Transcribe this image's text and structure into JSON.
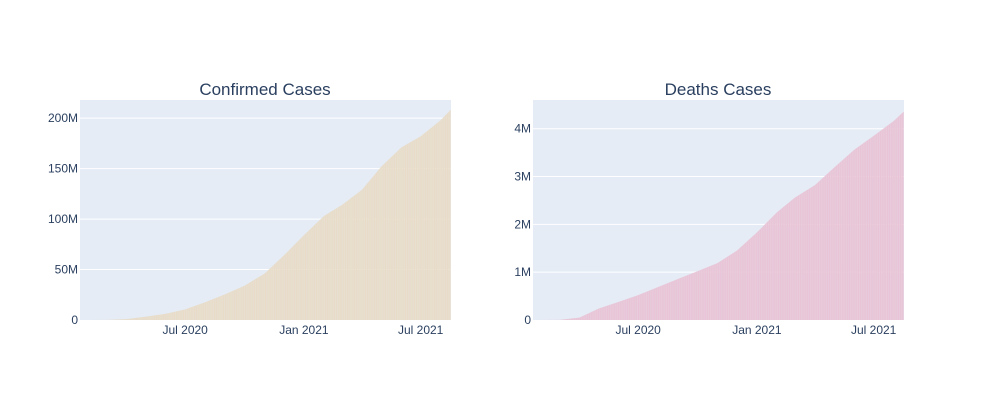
{
  "chart_data": [
    {
      "type": "bar",
      "title": "Confirmed Cases",
      "xlabel": "",
      "ylabel": "",
      "x_ticks": [
        "Jul 2020",
        "Jan 2021",
        "Jul 2021"
      ],
      "y_ticks": [
        "0",
        "50M",
        "100M",
        "150M",
        "200M"
      ],
      "ylim": [
        0,
        218000000
      ],
      "x_range": [
        "2020-01-20",
        "2021-08-17"
      ],
      "grid": true,
      "legend": "none",
      "color": "#e8dcc8",
      "series": [
        {
          "x": [
            "2020-01-22",
            "2020-03-01",
            "2020-04-01",
            "2020-05-01",
            "2020-06-01",
            "2020-07-01",
            "2020-08-01",
            "2020-09-01",
            "2020-10-01",
            "2020-11-01",
            "2020-12-01",
            "2021-01-01",
            "2021-02-01",
            "2021-03-01",
            "2021-04-01",
            "2021-05-01",
            "2021-06-01",
            "2021-07-01",
            "2021-08-01",
            "2021-08-16"
          ],
          "values": [
            0,
            90000,
            900000,
            3300000,
            6200000,
            10500000,
            17600000,
            25500000,
            34000000,
            46000000,
            64000000,
            84000000,
            103000000,
            114000000,
            129000000,
            152000000,
            171000000,
            182000000,
            198000000,
            208000000
          ]
        }
      ]
    },
    {
      "type": "bar",
      "title": "Deaths Cases",
      "xlabel": "",
      "ylabel": "",
      "x_ticks": [
        "Jul 2020",
        "Jan 2021",
        "Jul 2021"
      ],
      "y_ticks": [
        "0",
        "1M",
        "2M",
        "3M",
        "4M"
      ],
      "ylim": [
        0,
        4600000
      ],
      "x_range": [
        "2020-01-20",
        "2021-08-17"
      ],
      "grid": true,
      "legend": "none",
      "color": "#e8c4d6",
      "series": [
        {
          "x": [
            "2020-01-22",
            "2020-03-01",
            "2020-04-01",
            "2020-05-01",
            "2020-06-01",
            "2020-07-01",
            "2020-08-01",
            "2020-09-01",
            "2020-10-01",
            "2020-11-01",
            "2020-12-01",
            "2021-01-01",
            "2021-02-01",
            "2021-03-01",
            "2021-04-01",
            "2021-05-01",
            "2021-06-01",
            "2021-07-01",
            "2021-08-01",
            "2021-08-16"
          ],
          "values": [
            0,
            3000,
            50000,
            240000,
            380000,
            520000,
            690000,
            860000,
            1020000,
            1190000,
            1450000,
            1830000,
            2250000,
            2560000,
            2820000,
            3190000,
            3560000,
            3850000,
            4160000,
            4350000
          ]
        }
      ]
    }
  ]
}
